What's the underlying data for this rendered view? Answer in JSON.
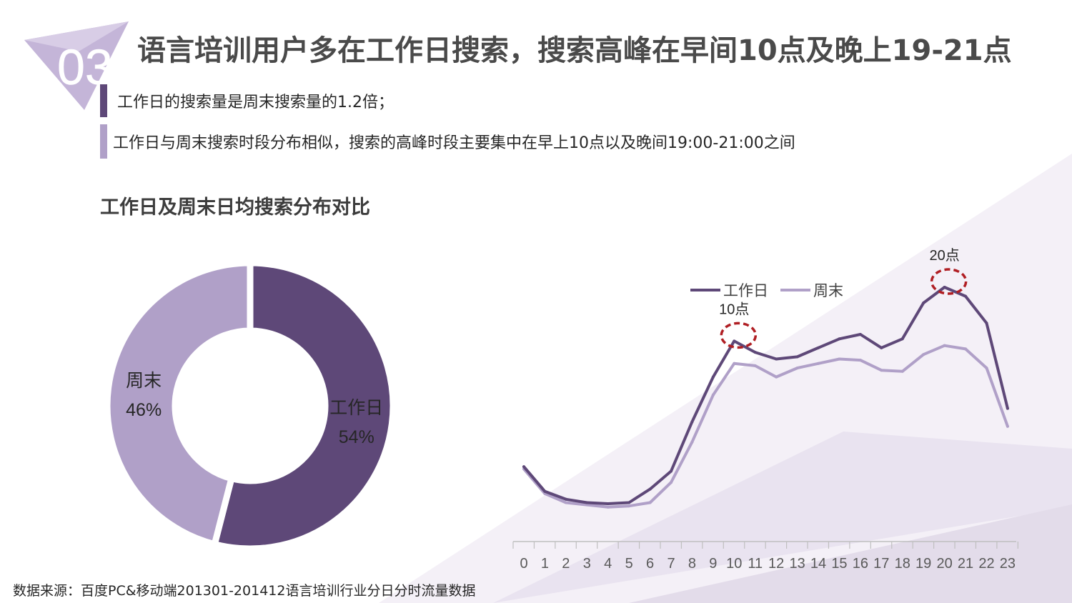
{
  "badge": {
    "number": "03"
  },
  "title": "语言培训用户多在工作日搜索，搜索高峰在早间10点及晚上19-21点",
  "bullets": [
    "工作日的搜索量是周末搜索量的1.2倍；",
    "工作日与周末搜索时段分布相似，搜索的高峰时段主要集中在早上10点以及晚间19:00-21:00之间"
  ],
  "subtitle": "工作日及周末日均搜索分布对比",
  "source": "数据来源：百度PC&移动端201301-201412语言培训行业分日分时流量数据",
  "colors": {
    "weekday": "#5e4878",
    "weekend": "#b0a0c8",
    "highlight": "#b01e23",
    "axis": "#bfbfbf",
    "background_shape": "#ece6f1"
  },
  "chart_data": [
    {
      "type": "pie",
      "subtype": "donut",
      "slices": [
        {
          "name": "工作日",
          "label": "54%",
          "value": 54
        },
        {
          "name": "周末",
          "label": "46%",
          "value": 46
        }
      ]
    },
    {
      "type": "line",
      "x": [
        "0",
        "1",
        "2",
        "3",
        "4",
        "5",
        "6",
        "7",
        "8",
        "9",
        "10",
        "11",
        "12",
        "13",
        "14",
        "15",
        "16",
        "17",
        "18",
        "19",
        "20",
        "21",
        "22",
        "23"
      ],
      "series": [
        {
          "name": "工作日",
          "values": [
            34,
            23,
            19.5,
            18,
            17.5,
            18,
            24,
            32,
            54,
            74,
            90,
            85,
            82,
            83,
            87,
            91,
            93,
            87,
            91,
            107,
            114,
            110,
            98,
            60
          ]
        },
        {
          "name": "周末",
          "values": [
            33,
            22,
            18,
            17,
            16,
            16.5,
            18,
            27,
            45,
            66,
            80,
            79,
            74,
            78,
            80,
            82,
            81.5,
            77,
            76.5,
            84,
            88,
            86.5,
            78,
            52
          ]
        }
      ],
      "legend": "top",
      "grid": false,
      "annotations": [
        {
          "label": "10点",
          "x": "10"
        },
        {
          "label": "20点",
          "x": "20"
        }
      ]
    }
  ]
}
